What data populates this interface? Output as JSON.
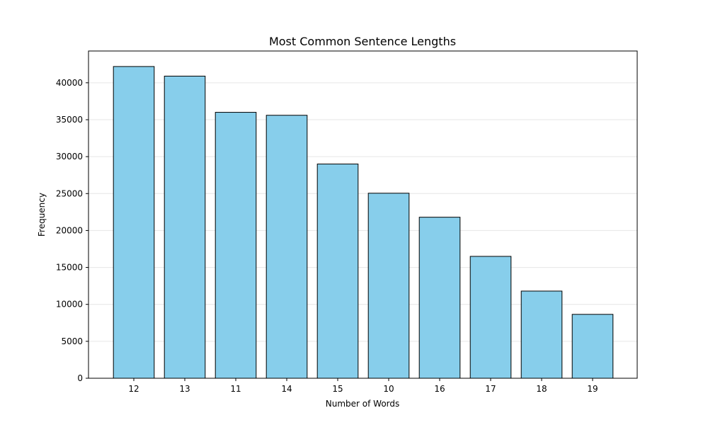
{
  "chart_data": {
    "type": "bar",
    "title": "Most Common Sentence Lengths",
    "xlabel": "Number of Words",
    "ylabel": "Frequency",
    "categories": [
      "12",
      "13",
      "11",
      "14",
      "15",
      "10",
      "16",
      "17",
      "18",
      "19"
    ],
    "values": [
      42200,
      40900,
      36000,
      35600,
      29000,
      25050,
      21800,
      16500,
      11800,
      8650
    ],
    "ylim": [
      0,
      44300
    ],
    "yticks": [
      0,
      5000,
      10000,
      15000,
      20000,
      25000,
      30000,
      35000,
      40000
    ],
    "ytick_labels": [
      "0",
      "5000",
      "10000",
      "15000",
      "20000",
      "25000",
      "30000",
      "35000",
      "40000"
    ],
    "grid": "y-axis, light",
    "bar_color": "#87CEEB",
    "bar_edge_color": "#000000",
    "legend": "none"
  }
}
